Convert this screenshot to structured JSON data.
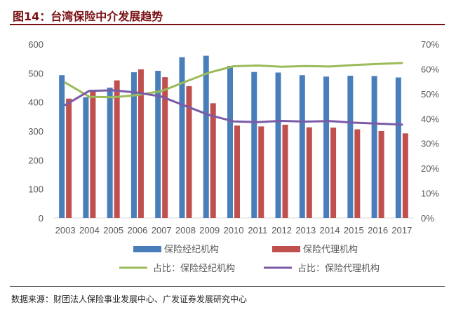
{
  "figure": {
    "title": "图14：台湾保险中介发展趋势",
    "source": "数据来源：财团法人保险事业发展中心、广发证券发展研究中心"
  },
  "chart_data": {
    "type": "bar",
    "categories": [
      "2003",
      "2004",
      "2005",
      "2006",
      "2007",
      "2008",
      "2009",
      "2010",
      "2011",
      "2012",
      "2013",
      "2014",
      "2015",
      "2016",
      "2017"
    ],
    "series": [
      {
        "name": "保险经纪机构",
        "type": "bar",
        "axis": "left",
        "color": "#4a7ebb",
        "values": [
          493,
          417,
          450,
          503,
          508,
          555,
          560,
          525,
          504,
          502,
          493,
          488,
          491,
          490,
          485
        ]
      },
      {
        "name": "保险代理机构",
        "type": "bar",
        "axis": "left",
        "color": "#c0504d",
        "values": [
          412,
          438,
          475,
          513,
          486,
          455,
          396,
          319,
          316,
          322,
          313,
          312,
          306,
          300,
          292
        ]
      },
      {
        "name": "占比：保险经纪机构",
        "type": "line",
        "axis": "right",
        "color": "#9bbb59",
        "values": [
          54.5,
          48.8,
          48.6,
          49.5,
          51.1,
          54.9,
          58.6,
          61.1,
          61.4,
          60.9,
          61.2,
          61.0,
          61.6,
          62.0,
          62.4
        ]
      },
      {
        "name": "占比：保险代理机构",
        "type": "line",
        "axis": "right",
        "color": "#7b5aa6",
        "values": [
          45.5,
          51.2,
          51.4,
          50.5,
          48.9,
          45.1,
          41.4,
          38.9,
          38.6,
          39.1,
          38.8,
          39.0,
          38.4,
          38.0,
          37.6
        ]
      }
    ],
    "y_left": {
      "min": 0,
      "max": 600,
      "ticks": [
        "0",
        "100",
        "200",
        "300",
        "400",
        "500",
        "600"
      ]
    },
    "y_right": {
      "min": 0,
      "max": 70,
      "ticks": [
        "0%",
        "10%",
        "20%",
        "30%",
        "40%",
        "50%",
        "60%",
        "70%"
      ]
    },
    "grid": false,
    "legend_position": "bottom"
  }
}
